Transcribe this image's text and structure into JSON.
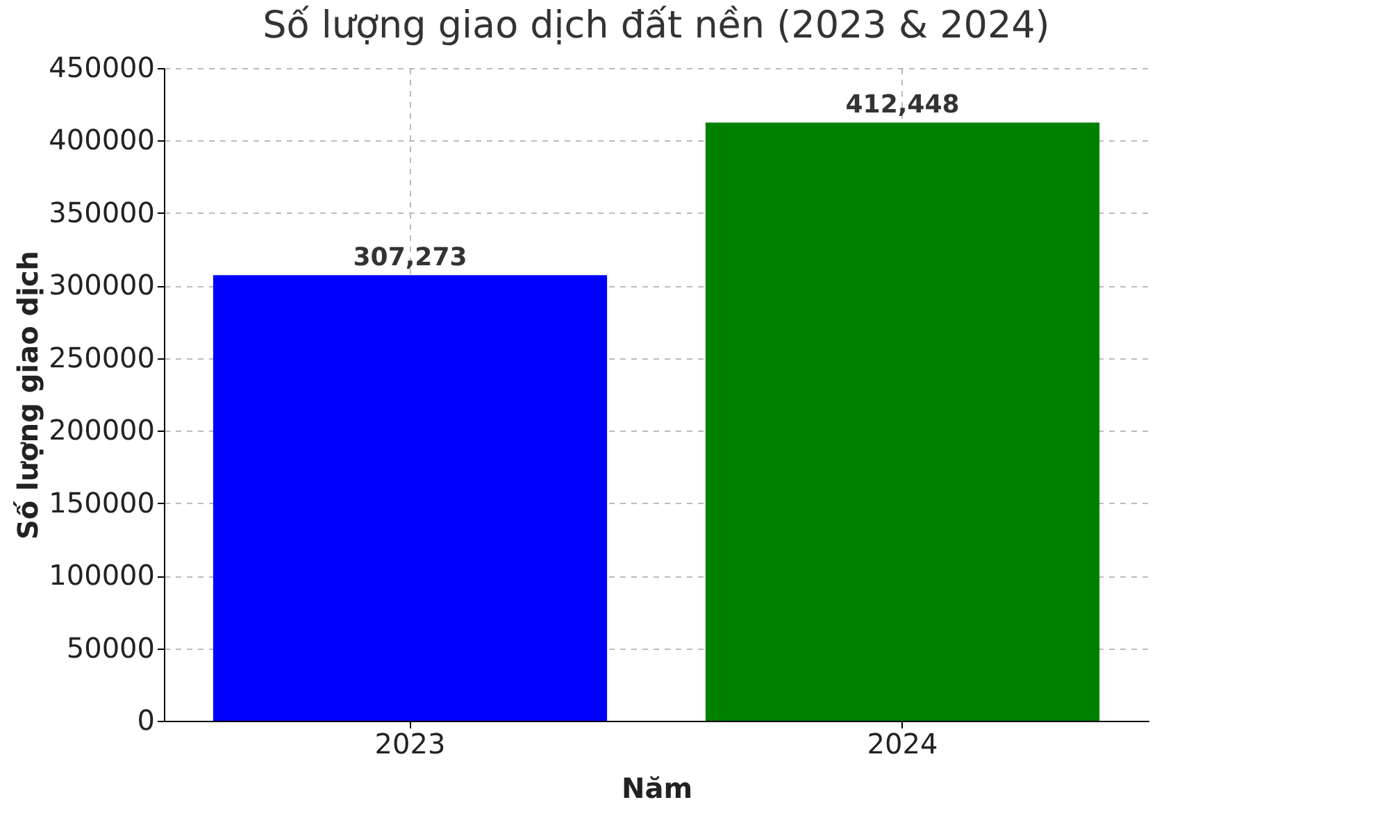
{
  "chart_data": {
    "type": "bar",
    "title": "Số lượng giao dịch đất nền (2023 & 2024)",
    "xlabel": "Năm",
    "ylabel": "Số lượng giao dịch",
    "categories": [
      "2023",
      "2024"
    ],
    "values": [
      307273,
      412448
    ],
    "colors": [
      "#0000ff",
      "#008000"
    ],
    "value_labels": [
      "307,273",
      "412,448"
    ],
    "ylim": [
      0,
      450000
    ],
    "yticks": [
      0,
      50000,
      100000,
      150000,
      200000,
      250000,
      300000,
      350000,
      400000,
      450000
    ],
    "grid": true
  }
}
